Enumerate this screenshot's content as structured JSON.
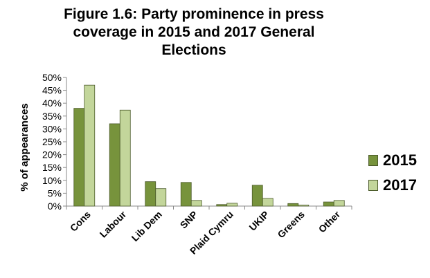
{
  "chart_data": {
    "type": "bar",
    "title_lines": [
      "Figure 1.6: Party prominence in press",
      "coverage in 2015 and 2017 General",
      "Elections"
    ],
    "ylabel": "% of appearances",
    "xlabel": "",
    "categories": [
      "Cons",
      "Labour",
      "Lib Dem",
      "SNP",
      "Plaid Cymru",
      "UKIP",
      "Greens",
      "Other"
    ],
    "series": [
      {
        "name": "2015",
        "color": "#77933c",
        "values": [
          38,
          32,
          9.5,
          9.2,
          0.6,
          8.1,
          1.0,
          1.6
        ]
      },
      {
        "name": "2017",
        "color": "#c3d69b",
        "values": [
          47,
          37.3,
          6.8,
          2.2,
          1.1,
          3.0,
          0.4,
          2.2
        ]
      }
    ],
    "yticks": [
      "0%",
      "5%",
      "10%",
      "15%",
      "20%",
      "25%",
      "30%",
      "35%",
      "40%",
      "45%",
      "50%"
    ],
    "ylim": [
      0,
      50
    ],
    "grid": false,
    "legend_position": "right"
  }
}
